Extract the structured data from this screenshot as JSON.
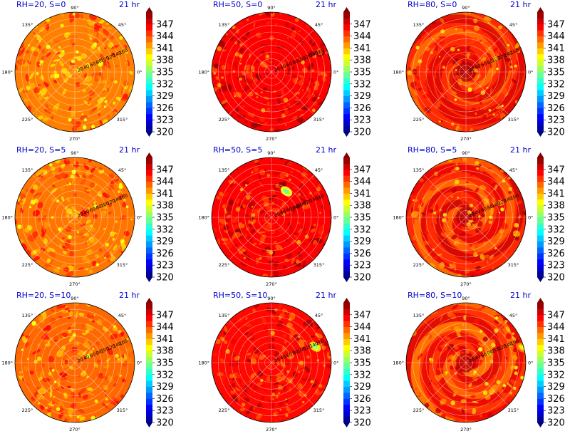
{
  "colormap": {
    "name": "jet",
    "stops": [
      "#00007f",
      "#0000ff",
      "#007fff",
      "#00ffff",
      "#7fff7f",
      "#ffff00",
      "#ff7f00",
      "#ff0000",
      "#7f0000"
    ]
  },
  "chart_data": [
    {
      "type": "heatmap",
      "projection": "polar",
      "title": "RH=20, S=0",
      "time_label": "21 hr",
      "angle_ticks": [
        "0°",
        "45°",
        "90°",
        "135°",
        "180°",
        "225°",
        "270°",
        "315°"
      ],
      "r_ticks": [
        "20",
        "40",
        "60",
        "80",
        "100",
        "120",
        "140",
        "160"
      ],
      "colorbar": {
        "ticks": [
          "320",
          "323",
          "326",
          "329",
          "332",
          "335",
          "338",
          "341",
          "344",
          "347"
        ],
        "range": [
          320,
          350
        ]
      },
      "field": {
        "mean": 342.5,
        "spread": 2.2,
        "pattern": "patchy",
        "hotspot": null
      }
    },
    {
      "type": "heatmap",
      "projection": "polar",
      "title": "RH=50, S=0",
      "time_label": "21 hr",
      "angle_ticks": [
        "0°",
        "45°",
        "90°",
        "135°",
        "180°",
        "225°",
        "270°",
        "315°"
      ],
      "r_ticks": [
        "20",
        "40",
        "60",
        "80",
        "100",
        "120",
        "140",
        "160"
      ],
      "colorbar": {
        "ticks": [
          "320",
          "323",
          "326",
          "329",
          "332",
          "335",
          "338",
          "341",
          "344",
          "347"
        ],
        "range": [
          320,
          350
        ]
      },
      "field": {
        "mean": 346.3,
        "spread": 2.0,
        "pattern": "patchy",
        "hotspot": null
      }
    },
    {
      "type": "heatmap",
      "projection": "polar",
      "title": "RH=80, S=0",
      "time_label": "21 hr",
      "angle_ticks": [
        "0°",
        "45°",
        "90°",
        "135°",
        "180°",
        "225°",
        "270°",
        "315°"
      ],
      "r_ticks": [
        "20",
        "40",
        "60",
        "80",
        "100",
        "120",
        "140",
        "160"
      ],
      "colorbar": {
        "ticks": [
          "320",
          "323",
          "326",
          "329",
          "332",
          "335",
          "338",
          "341",
          "344",
          "347"
        ],
        "range": [
          320,
          350
        ]
      },
      "field": {
        "mean": 345.0,
        "spread": 2.4,
        "pattern": "spiral",
        "hotspot": null
      }
    },
    {
      "type": "heatmap",
      "projection": "polar",
      "title": "RH=20, S=5",
      "time_label": "21 hr",
      "angle_ticks": [
        "0°",
        "45°",
        "90°",
        "135°",
        "180°",
        "225°",
        "270°",
        "315°"
      ],
      "r_ticks": [
        "20",
        "40",
        "60",
        "80",
        "100",
        "120",
        "140",
        "160"
      ],
      "colorbar": {
        "ticks": [
          "320",
          "323",
          "326",
          "329",
          "332",
          "335",
          "338",
          "341",
          "344",
          "347"
        ],
        "range": [
          320,
          350
        ]
      },
      "field": {
        "mean": 342.8,
        "spread": 2.2,
        "pattern": "patchy",
        "hotspot": null
      }
    },
    {
      "type": "heatmap",
      "projection": "polar",
      "title": "RH=50, S=5",
      "time_label": "21 hr",
      "angle_ticks": [
        "0°",
        "45°",
        "90°",
        "135°",
        "180°",
        "225°",
        "270°",
        "315°"
      ],
      "r_ticks": [
        "20",
        "40",
        "60",
        "80",
        "100",
        "120",
        "140",
        "160"
      ],
      "colorbar": {
        "ticks": [
          "320",
          "323",
          "326",
          "329",
          "332",
          "335",
          "338",
          "341",
          "344",
          "347"
        ],
        "range": [
          320,
          350
        ]
      },
      "field": {
        "mean": 346.3,
        "spread": 2.0,
        "pattern": "patchy",
        "hotspot": {
          "angle_deg": 60,
          "r": 90,
          "value": 334
        }
      }
    },
    {
      "type": "heatmap",
      "projection": "polar",
      "title": "RH=80, S=5",
      "time_label": "21 hr",
      "angle_ticks": [
        "0°",
        "45°",
        "90°",
        "135°",
        "180°",
        "225°",
        "270°",
        "315°"
      ],
      "r_ticks": [
        "20",
        "40",
        "60",
        "80",
        "100",
        "120",
        "140",
        "160"
      ],
      "colorbar": {
        "ticks": [
          "320",
          "323",
          "326",
          "329",
          "332",
          "335",
          "338",
          "341",
          "344",
          "347"
        ],
        "range": [
          320,
          350
        ]
      },
      "field": {
        "mean": 345.0,
        "spread": 2.4,
        "pattern": "spiral",
        "hotspot": null
      }
    },
    {
      "type": "heatmap",
      "projection": "polar",
      "title": "RH=20, S=10",
      "time_label": "21 hr",
      "angle_ticks": [
        "0°",
        "45°",
        "90°",
        "135°",
        "180°",
        "225°",
        "270°",
        "315°"
      ],
      "r_ticks": [
        "20",
        "40",
        "60",
        "80",
        "100",
        "120",
        "140",
        "160"
      ],
      "colorbar": {
        "ticks": [
          "320",
          "323",
          "326",
          "329",
          "332",
          "335",
          "338",
          "341",
          "344",
          "347"
        ],
        "range": [
          320,
          350
        ]
      },
      "field": {
        "mean": 343.2,
        "spread": 2.2,
        "pattern": "patchy",
        "hotspot": null
      }
    },
    {
      "type": "heatmap",
      "projection": "polar",
      "title": "RH=50, S=10",
      "time_label": "21 hr",
      "angle_ticks": [
        "0°",
        "45°",
        "90°",
        "135°",
        "180°",
        "225°",
        "270°",
        "315°"
      ],
      "r_ticks": [
        "20",
        "40",
        "60",
        "80",
        "100",
        "120",
        "140",
        "160"
      ],
      "colorbar": {
        "ticks": [
          "320",
          "323",
          "326",
          "329",
          "332",
          "335",
          "338",
          "341",
          "344",
          "347"
        ],
        "range": [
          320,
          350
        ]
      },
      "field": {
        "mean": 346.0,
        "spread": 2.0,
        "pattern": "patchy",
        "hotspot": {
          "angle_deg": 20,
          "r": 140,
          "value": 335
        }
      }
    },
    {
      "type": "heatmap",
      "projection": "polar",
      "title": "RH=80, S=10",
      "time_label": "21 hr",
      "angle_ticks": [
        "0°",
        "45°",
        "90°",
        "135°",
        "180°",
        "225°",
        "270°",
        "315°"
      ],
      "r_ticks": [
        "20",
        "40",
        "60",
        "80",
        "100",
        "120",
        "140",
        "160"
      ],
      "colorbar": {
        "ticks": [
          "320",
          "323",
          "326",
          "329",
          "332",
          "335",
          "338",
          "341",
          "344",
          "347"
        ],
        "range": [
          320,
          350
        ]
      },
      "field": {
        "mean": 344.7,
        "spread": 2.4,
        "pattern": "spiral",
        "hotspot": {
          "angle_deg": 15,
          "r": 175,
          "value": 338
        }
      }
    }
  ]
}
